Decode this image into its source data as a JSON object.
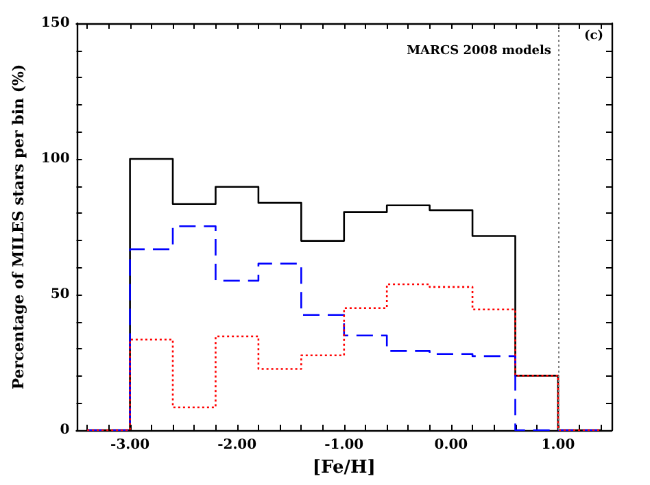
{
  "chart_data": {
    "type": "histogram",
    "xlabel": "[Fe/H]",
    "ylabel": "Percentage of MILES stars per bin (%)",
    "annotations": [
      "MARCS 2008 models",
      "(c)"
    ],
    "bins": [
      -3.4,
      -3.0,
      -2.6,
      -2.2,
      -1.8,
      -1.4,
      -1.0,
      -0.6,
      -0.2,
      0.2,
      0.6,
      1.0,
      1.4
    ],
    "series": [
      {
        "color": "#000000",
        "line_style": "solid",
        "values": [
          0,
          100,
          83.4,
          89.7,
          83.8,
          69.8,
          80.4,
          82.9,
          81.1,
          71.6,
          20.1,
          0
        ]
      },
      {
        "color": "#0000ff",
        "line_style": "dashed",
        "values": [
          0,
          66.7,
          75.2,
          55.1,
          61.4,
          42.5,
          34.9,
          29.2,
          28.1,
          27.3,
          0,
          0
        ]
      },
      {
        "color": "#ff0000",
        "line_style": "dotted",
        "values": [
          0,
          33.4,
          8.4,
          34.6,
          22.6,
          27.6,
          45,
          53.8,
          52.8,
          44.5,
          20.1,
          0
        ]
      }
    ],
    "xlim": [
      -3.5,
      1.5
    ],
    "xticks": [
      {
        "value": -3.4,
        "label": null
      },
      {
        "value": -3.2,
        "label": null
      },
      {
        "value": -3,
        "label": "-3.00"
      },
      {
        "value": -2.8,
        "label": null
      },
      {
        "value": -2.6,
        "label": null
      },
      {
        "value": -2.4,
        "label": null
      },
      {
        "value": -2.2,
        "label": null
      },
      {
        "value": -2,
        "label": "-2.00"
      },
      {
        "value": -1.8,
        "label": null
      },
      {
        "value": -1.6,
        "label": null
      },
      {
        "value": -1.4,
        "label": null
      },
      {
        "value": -1.2,
        "label": null
      },
      {
        "value": -1,
        "label": "-1.00"
      },
      {
        "value": -0.8,
        "label": null
      },
      {
        "value": -0.6,
        "label": null
      },
      {
        "value": -0.4,
        "label": null
      },
      {
        "value": -0.2,
        "label": null
      },
      {
        "value": 0,
        "label": "0.00"
      },
      {
        "value": 0.2,
        "label": null
      },
      {
        "value": 0.4,
        "label": null
      },
      {
        "value": 0.6,
        "label": null
      },
      {
        "value": 0.8,
        "label": null
      },
      {
        "value": 1,
        "label": "1.00"
      },
      {
        "value": 1.2,
        "label": null
      },
      {
        "value": 1.4,
        "label": null
      }
    ],
    "ylim": [
      0,
      150
    ],
    "yticks": [
      0,
      {
        "value": 10,
        "label": null
      },
      {
        "value": 20,
        "label": null
      },
      {
        "value": 30,
        "label": null
      },
      {
        "value": 40,
        "label": null
      },
      50,
      {
        "value": 60,
        "label": null
      },
      {
        "value": 70,
        "label": null
      },
      {
        "value": 80,
        "label": null
      },
      {
        "value": 90,
        "label": null
      },
      100,
      {
        "value": 110,
        "label": null
      },
      {
        "value": 120,
        "label": null
      },
      {
        "value": 130,
        "label": null
      },
      {
        "value": 140,
        "label": null
      },
      150
    ],
    "ref_lines": [
      {
        "axis": "x",
        "value": 1.0,
        "color": "#808080",
        "line_style": "dotted"
      }
    ],
    "tick_labels": true
  }
}
